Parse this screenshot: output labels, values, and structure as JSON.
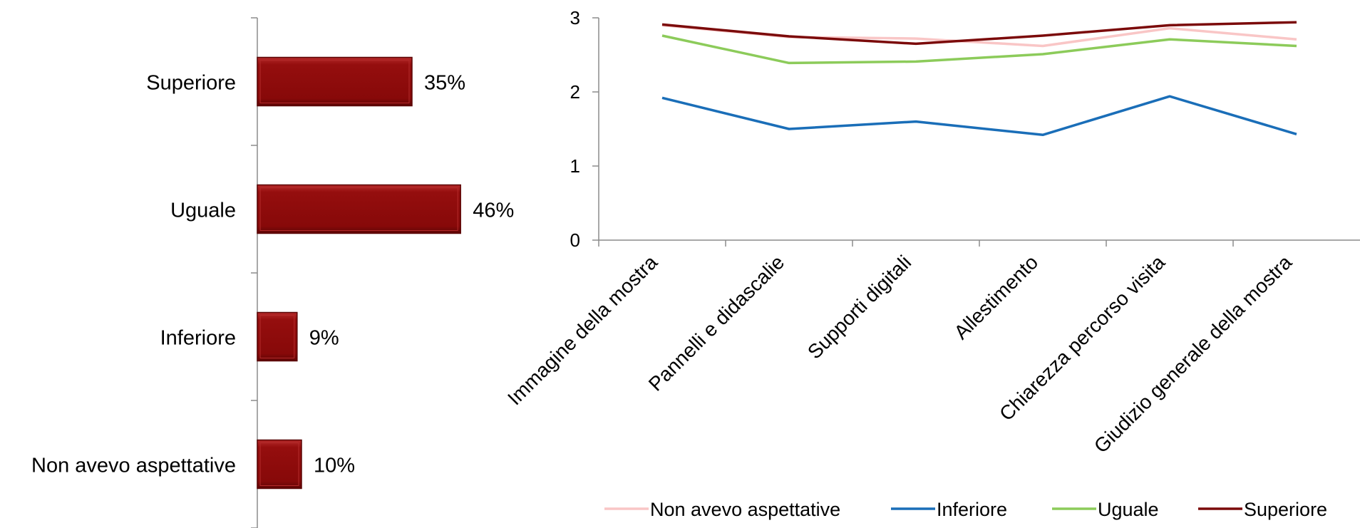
{
  "colors": {
    "bar_fill": "#8B0A0A",
    "bar_highlight": "#B32A2A",
    "bar_shadow": "#5A0505",
    "axis": "#8C8C8C"
  },
  "chart_data": [
    {
      "type": "bar",
      "orientation": "horizontal",
      "categories": [
        "Superiore",
        "Uguale",
        "Inferiore",
        "Non avevo aspettative"
      ],
      "values": [
        35,
        46,
        9,
        10
      ],
      "value_labels": [
        "35%",
        "46%",
        "9%",
        "10%"
      ],
      "unit": "%",
      "xlim": [
        0,
        100
      ],
      "grid": false
    },
    {
      "type": "line",
      "categories": [
        "Immagine della mostra",
        "Pannelli e didascalie",
        "Supporti digitali",
        "Allestimento",
        "Chiarezza percorso visita",
        "Giudizio generale della mostra"
      ],
      "ylim": [
        0,
        3
      ],
      "yticks": [
        "0",
        "1",
        "2",
        "3"
      ],
      "grid": false,
      "legend_position": "bottom",
      "series": [
        {
          "name": "Non avevo aspettative",
          "color": "#F9C6C6",
          "values": [
            2.9,
            2.74,
            2.72,
            2.62,
            2.86,
            2.71
          ]
        },
        {
          "name": "Inferiore",
          "color": "#1A6EB8",
          "values": [
            1.92,
            1.5,
            1.6,
            1.42,
            1.94,
            1.43
          ]
        },
        {
          "name": "Uguale",
          "color": "#8CCB5A",
          "values": [
            2.76,
            2.39,
            2.41,
            2.51,
            2.71,
            2.62
          ]
        },
        {
          "name": "Superiore",
          "color": "#7B0A0A",
          "values": [
            2.91,
            2.75,
            2.65,
            2.76,
            2.9,
            2.94
          ]
        }
      ]
    }
  ]
}
